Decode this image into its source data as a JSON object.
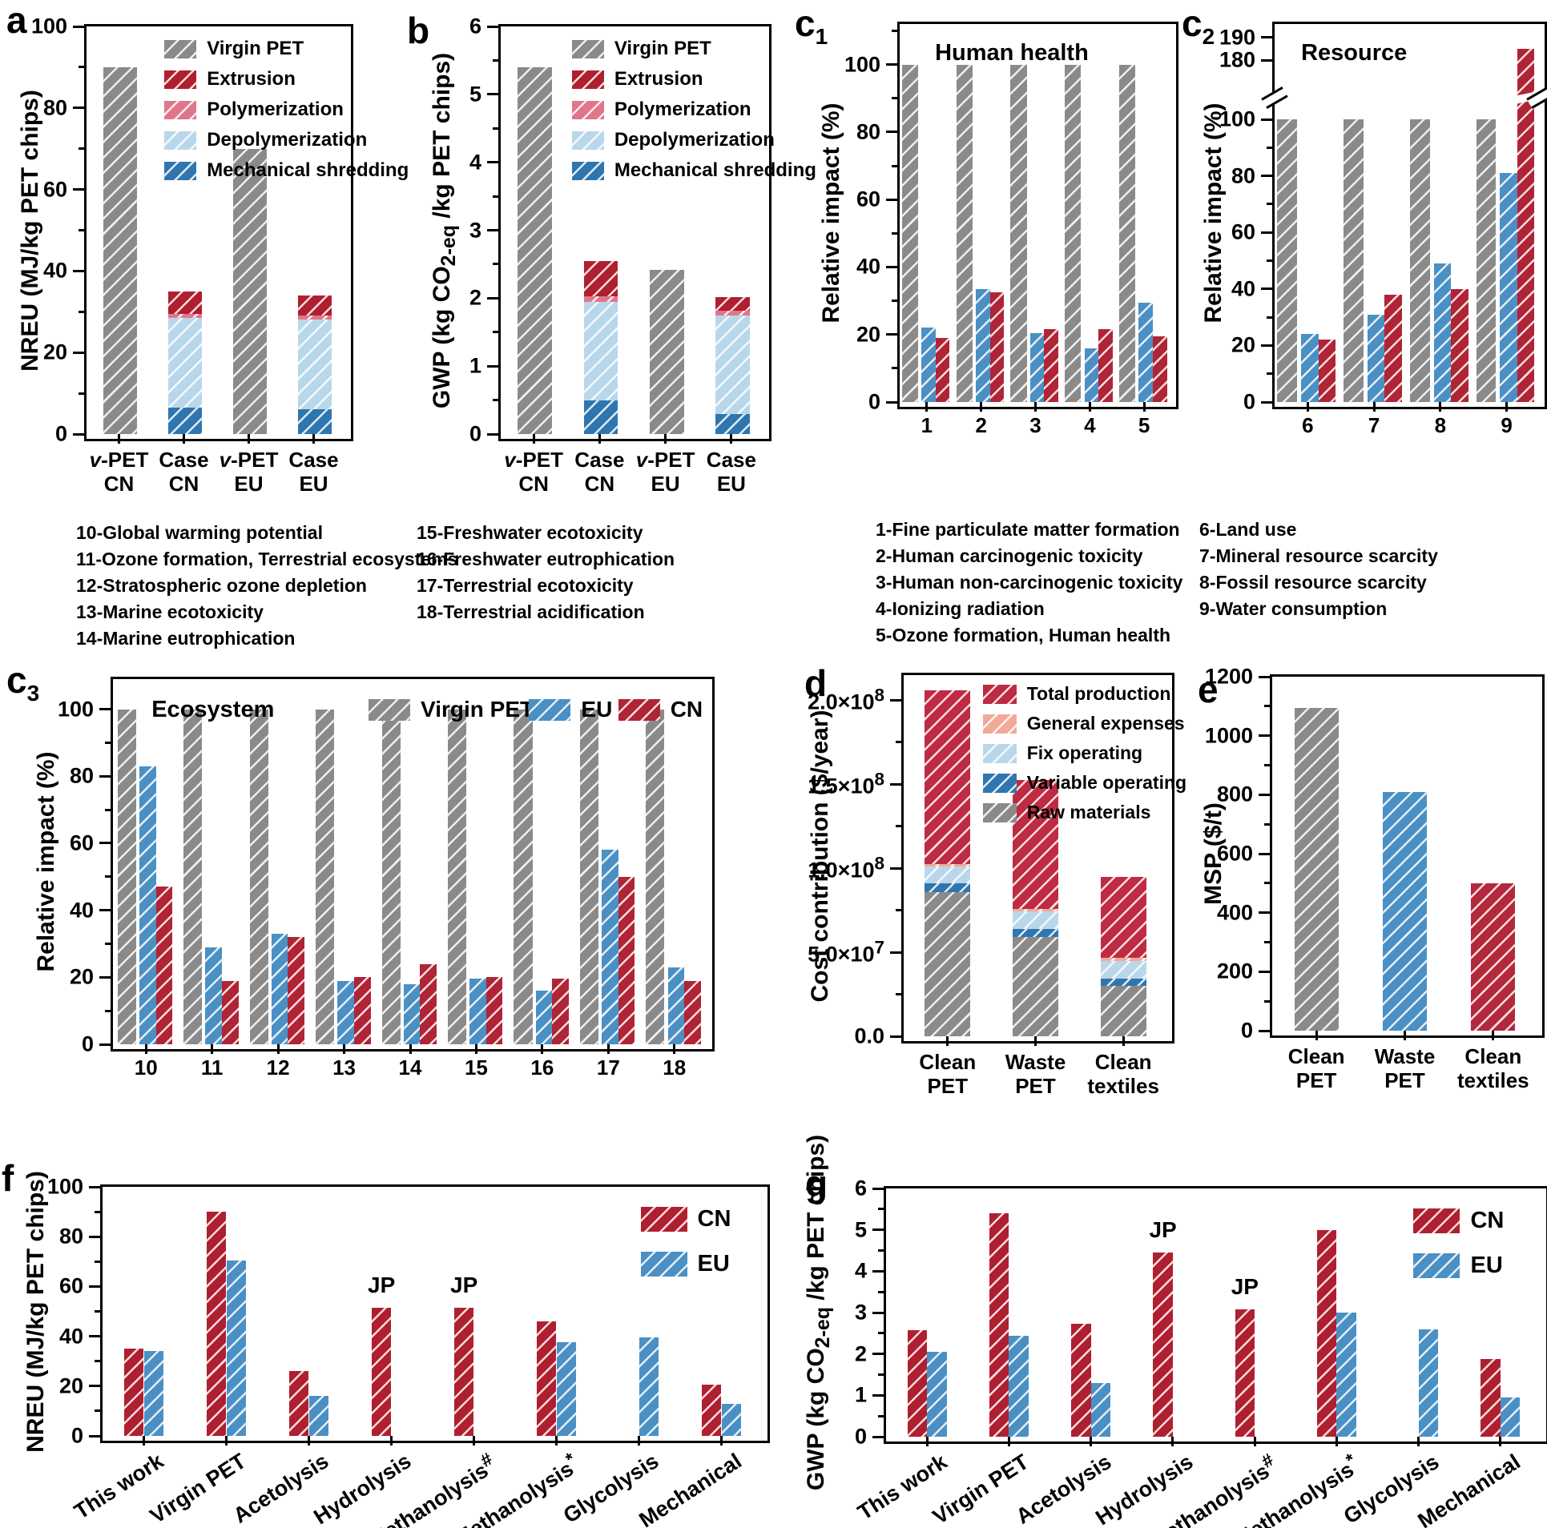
{
  "figure_background": "#ffffff",
  "palette": {
    "virgin_gray": "#8a8a8a",
    "extrusion_crimson": "#b01f2f",
    "polymerization_pink": "#e0768a",
    "depolymerization_lightblue": "#b9d7ea",
    "mechanical_blue": "#2f76b0",
    "eu_blue": "#4a90c4",
    "cn_red": "#b02435",
    "total_production_red": "#bf2b42",
    "general_expenses_salmon": "#f2a99a",
    "textiles_red": "#b4283c"
  },
  "chart_data": [
    {
      "id": "a",
      "label": "a",
      "type": "stacked",
      "ylabel": "NREU (MJ/kg PET chips)",
      "ylim": [
        0,
        100
      ],
      "yticks": [
        0,
        20,
        40,
        60,
        80,
        100
      ],
      "categories": [
        "*{v}-PET\nCN",
        "Case\nCN",
        "*{v}-PET\nEU",
        "Case\nEU"
      ],
      "series": [
        {
          "name": "Mechanical shredding",
          "color": "#2f76b0",
          "values": [
            0,
            6.5,
            0,
            6
          ]
        },
        {
          "name": "Depolymerization",
          "color": "#b9d7ea",
          "values": [
            0,
            22,
            0,
            22
          ]
        },
        {
          "name": "Polymerization",
          "color": "#e0768a",
          "values": [
            0,
            1,
            0,
            1
          ]
        },
        {
          "name": "Extrusion",
          "color": "#b01f2f",
          "values": [
            0,
            5.5,
            0,
            5
          ]
        },
        {
          "name": "Virgin PET",
          "color": "#8a8a8a",
          "values": [
            90,
            0,
            70,
            0
          ]
        }
      ],
      "legend": [
        {
          "label": "Virgin PET",
          "color": "#8a8a8a"
        },
        {
          "label": "Extrusion",
          "color": "#b01f2f"
        },
        {
          "label": "Polymerization",
          "color": "#e0768a"
        },
        {
          "label": "Depolymerization",
          "color": "#b9d7ea"
        },
        {
          "label": "Mechanical shredding",
          "color": "#2f76b0"
        }
      ]
    },
    {
      "id": "b",
      "label": "b",
      "type": "stacked",
      "ylabel": "GWP (kg CO~{2-eq} /kg PET chips)",
      "ylim": [
        0,
        6
      ],
      "yticks": [
        0,
        1,
        2,
        3,
        4,
        5,
        6
      ],
      "categories": [
        "*{v}-PET\nCN",
        "Case\nCN",
        "*{v}-PET\nEU",
        "Case\nEU"
      ],
      "series": [
        {
          "name": "Mechanical shredding",
          "color": "#2f76b0",
          "values": [
            0,
            0.5,
            0,
            0.3
          ]
        },
        {
          "name": "Depolymerization",
          "color": "#b9d7ea",
          "values": [
            0,
            1.45,
            0,
            1.45
          ]
        },
        {
          "name": "Polymerization",
          "color": "#e0768a",
          "values": [
            0,
            0.08,
            0,
            0.07
          ]
        },
        {
          "name": "Extrusion",
          "color": "#b01f2f",
          "values": [
            0,
            0.52,
            0,
            0.2
          ]
        },
        {
          "name": "Virgin PET",
          "color": "#8a8a8a",
          "values": [
            5.4,
            0,
            2.42,
            0
          ]
        }
      ],
      "legend": [
        {
          "label": "Virgin PET",
          "color": "#8a8a8a"
        },
        {
          "label": "Extrusion",
          "color": "#b01f2f"
        },
        {
          "label": "Polymerization",
          "color": "#e0768a"
        },
        {
          "label": "Depolymerization",
          "color": "#b9d7ea"
        },
        {
          "label": "Mechanical shredding",
          "color": "#2f76b0"
        }
      ]
    },
    {
      "id": "c1",
      "label": "c~{1}",
      "type": "grouped",
      "title": "Human health",
      "ylabel": "Relative impact (%)",
      "ylim": [
        0,
        112
      ],
      "yticks": [
        0,
        20,
        40,
        60,
        80,
        100
      ],
      "categories": [
        "1",
        "2",
        "3",
        "4",
        "5"
      ],
      "series": [
        {
          "name": "Virgin PET",
          "color": "#8a8a8a",
          "values": [
            100,
            100,
            100,
            100,
            100
          ]
        },
        {
          "name": "EU",
          "color": "#4a90c4",
          "values": [
            22,
            33.5,
            20.5,
            16,
            29.5
          ]
        },
        {
          "name": "CN",
          "color": "#b02435",
          "values": [
            19,
            32.5,
            21.5,
            21.5,
            19.5
          ]
        }
      ]
    },
    {
      "id": "c2",
      "label": "c~{2}",
      "type": "grouped",
      "title": "Resource",
      "ylabel": "Relative impact (%)",
      "ylim": [
        0,
        196
      ],
      "break": {
        "lowMax": 105,
        "lowFrac": 0.785,
        "upMin": 170,
        "upMax": 196,
        "upFrac": 0.845,
        "markFrac": 0.805
      },
      "yticks": [
        0,
        20,
        40,
        60,
        80,
        100,
        180,
        190
      ],
      "categories": [
        "6",
        "7",
        "8",
        "9"
      ],
      "series": [
        {
          "name": "Virgin PET",
          "color": "#8a8a8a",
          "values": [
            100,
            100,
            100,
            100
          ]
        },
        {
          "name": "EU",
          "color": "#4a90c4",
          "values": [
            24,
            31,
            49,
            81
          ]
        },
        {
          "name": "CN",
          "color": "#b02435",
          "values": [
            22,
            38,
            40,
            185
          ]
        }
      ]
    },
    {
      "id": "c3",
      "label": "c~{3}",
      "type": "grouped",
      "title": "Ecosystem",
      "ylabel": "Relative impact (%)",
      "ylim": [
        0,
        109
      ],
      "yticks": [
        0,
        20,
        40,
        60,
        80,
        100
      ],
      "categories": [
        "10",
        "11",
        "12",
        "13",
        "14",
        "15",
        "16",
        "17",
        "18"
      ],
      "series": [
        {
          "name": "Virgin PET",
          "color": "#8a8a8a",
          "values": [
            100,
            100,
            100,
            100,
            100,
            100,
            100,
            100,
            100
          ]
        },
        {
          "name": "EU",
          "color": "#4a90c4",
          "values": [
            83,
            29,
            33,
            19,
            18,
            19.5,
            16,
            58,
            23
          ]
        },
        {
          "name": "CN",
          "color": "#b02435",
          "values": [
            47,
            19,
            32,
            20,
            24,
            20,
            19.5,
            50,
            19
          ]
        }
      ],
      "legend": [
        {
          "label": "Virgin PET",
          "color": "#8a8a8a"
        },
        {
          "label": "EU",
          "color": "#4a90c4"
        },
        {
          "label": "CN",
          "color": "#b02435"
        }
      ]
    },
    {
      "id": "d",
      "label": "d",
      "type": "stacked",
      "ylabel": "Cost contribution ($/year)",
      "ylim": [
        0,
        215
      ],
      "value_scale": "plotted in millions of $/year",
      "yticks": [
        {
          "v": 0,
          "label": "0.0"
        },
        {
          "v": 50,
          "label": "5.0×10^{7}"
        },
        {
          "v": 100,
          "label": "1.0×10^{8}"
        },
        {
          "v": 150,
          "label": "1.5×10^{8}"
        },
        {
          "v": 200,
          "label": "2.0×10^{8}"
        }
      ],
      "categories": [
        "Clean\nPET",
        "Waste\nPET",
        "Clean\ntextiles"
      ],
      "series": [
        {
          "name": "Raw materials",
          "color": "#8a8a8a",
          "values": [
            86,
            59,
            30
          ]
        },
        {
          "name": "Variable operating",
          "color": "#2f76b0",
          "values": [
            5,
            5,
            4.5
          ]
        },
        {
          "name": "Fix operating",
          "color": "#b9d7ea",
          "values": [
            10,
            10.5,
            10.5
          ]
        },
        {
          "name": "General expenses",
          "color": "#f2a99a",
          "values": [
            1.5,
            1.5,
            1.5
          ]
        },
        {
          "name": "Total production",
          "color": "#bf2b42",
          "values": [
            103.5,
            76.5,
            48.5
          ]
        }
      ],
      "legend": [
        {
          "label": "Total production",
          "color": "#bf2b42"
        },
        {
          "label": "General expenses",
          "color": "#f2a99a"
        },
        {
          "label": "Fix operating",
          "color": "#b9d7ea"
        },
        {
          "label": "Variable operating",
          "color": "#2f76b0"
        },
        {
          "label": "Raw materials",
          "color": "#8a8a8a"
        }
      ]
    },
    {
      "id": "e",
      "label": "e",
      "type": "bar",
      "ylabel": "MSP ($/t)",
      "ylim": [
        0,
        1200
      ],
      "yticks": [
        0,
        200,
        400,
        600,
        800,
        1000,
        1200
      ],
      "categories": [
        "Clean\nPET",
        "Waste\nPET",
        "Clean\ntextiles"
      ],
      "values": [
        1095,
        808,
        500
      ],
      "bar_colors": [
        "#8a8a8a",
        "#4a90c4",
        "#b4283c"
      ]
    },
    {
      "id": "f",
      "label": "f",
      "type": "grouped",
      "ylabel": "NREU (MJ/kg PET chips)",
      "ylim": [
        0,
        100
      ],
      "yticks": [
        0,
        20,
        40,
        60,
        80,
        100
      ],
      "categories": [
        "This work",
        "Virgin PET",
        "Acetolysis",
        "Hydrolysis",
        "Methanolysis^{#}",
        "Methanolysis^{*}",
        "Glycolysis",
        "Mechanical"
      ],
      "series": [
        {
          "name": "CN",
          "color": "#b01f2f",
          "values": [
            35,
            90,
            26,
            51.5,
            51.5,
            46,
            null,
            20.5
          ]
        },
        {
          "name": "EU",
          "color": "#4a90c4",
          "values": [
            34,
            70.5,
            16,
            null,
            null,
            37.5,
            39.5,
            13
          ]
        }
      ],
      "legend": [
        {
          "label": "CN",
          "color": "#b01f2f"
        },
        {
          "label": "EU",
          "color": "#4a90c4"
        }
      ],
      "annotations": [
        {
          "text": "JP",
          "cat": 3,
          "series": 0
        },
        {
          "text": "JP",
          "cat": 4,
          "series": 0
        }
      ]
    },
    {
      "id": "g",
      "label": "g",
      "type": "grouped",
      "ylabel": "GWP (kg CO~{2-eq} /kg PET chips)",
      "ylim": [
        0,
        6
      ],
      "yticks": [
        0,
        1,
        2,
        3,
        4,
        5,
        6
      ],
      "categories": [
        "This work",
        "Virgin PET",
        "Acetolysis",
        "Hydrolysis",
        "Methanolysis^{#}",
        "Methanolysis^{*}",
        "Glycolysis",
        "Mechanical"
      ],
      "series": [
        {
          "name": "CN",
          "color": "#b01f2f",
          "values": [
            2.57,
            5.4,
            2.72,
            4.45,
            3.07,
            5.0,
            null,
            1.87
          ]
        },
        {
          "name": "EU",
          "color": "#4a90c4",
          "values": [
            2.05,
            2.43,
            1.3,
            null,
            null,
            3.0,
            2.6,
            0.95
          ]
        }
      ],
      "legend": [
        {
          "label": "CN",
          "color": "#b01f2f"
        },
        {
          "label": "EU",
          "color": "#4a90c4"
        }
      ],
      "annotations": [
        {
          "text": "JP",
          "cat": 3,
          "series": 0
        },
        {
          "text": "JP",
          "cat": 4,
          "series": 0
        }
      ]
    }
  ],
  "lists": [
    [
      "10-Global warming potential",
      "11-Ozone formation, Terrestrial ecosystems",
      "12-Stratospheric ozone depletion",
      "13-Marine ecotoxicity",
      "14-Marine eutrophication"
    ],
    [
      "15-Freshwater ecotoxicity",
      "16-Freshwater eutrophication",
      "17-Terrestrial ecotoxicity",
      "18-Terrestrial acidification"
    ],
    [
      "1-Fine particulate matter formation",
      "2-Human carcinogenic toxicity",
      "3-Human non-carcinogenic toxicity",
      "4-Ionizing radiation",
      "5-Ozone formation, Human health"
    ],
    [
      "6-Land use",
      "7-Mineral resource scarcity",
      "8-Fossil resource scarcity",
      "9-Water consumption"
    ]
  ]
}
